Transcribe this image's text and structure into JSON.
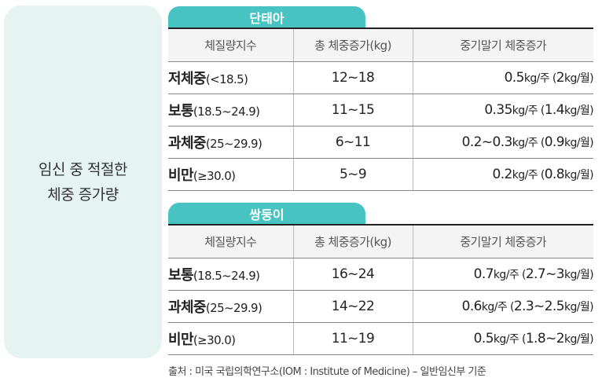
{
  "side_title": "임신 중 적절한\n체중 증가량",
  "tables": [
    {
      "tab_label": "단태아",
      "headers": {
        "bmi": "체질량지수",
        "total": "총 체중증가(kg)",
        "mid": "중기말기 체중증가"
      },
      "rows": [
        {
          "bmi_name": "저체중",
          "bmi_range": "(<18.5)",
          "total": "12~18",
          "mid_a": "0.5",
          "mid_u1": "kg/주 (",
          "mid_b": "2",
          "mid_u2": "kg/월)"
        },
        {
          "bmi_name": "보통",
          "bmi_range": "(18.5~24.9)",
          "total": "11~15",
          "mid_a": "0.35",
          "mid_u1": "kg/주 (",
          "mid_b": "1.4",
          "mid_u2": "kg/월)"
        },
        {
          "bmi_name": "과체중",
          "bmi_range": "(25~29.9)",
          "total": "6~11",
          "mid_a": "0.2~0.3",
          "mid_u1": "kg/주 (",
          "mid_b": "0.9",
          "mid_u2": "kg/월)"
        },
        {
          "bmi_name": "비만",
          "bmi_range": "(≥30.0)",
          "total": "5~9",
          "mid_a": "0.2",
          "mid_u1": "kg/주 (",
          "mid_b": "0.8",
          "mid_u2": "kg/월)"
        }
      ]
    },
    {
      "tab_label": "쌍둥이",
      "headers": {
        "bmi": "체질량지수",
        "total": "총 체중증가(kg)",
        "mid": "중기말기 체중증가"
      },
      "rows": [
        {
          "bmi_name": "보통",
          "bmi_range": "(18.5~24.9)",
          "total": "16~24",
          "mid_a": "0.7",
          "mid_u1": "kg/주 (",
          "mid_b": "2.7~3",
          "mid_u2": "kg/월)"
        },
        {
          "bmi_name": "과체중",
          "bmi_range": "(25~29.9)",
          "total": "14~22",
          "mid_a": "0.6",
          "mid_u1": "kg/주 (",
          "mid_b": "2.3~2.5",
          "mid_u2": "kg/월)"
        },
        {
          "bmi_name": "비만",
          "bmi_range": "(≥30.0)",
          "total": "11~19",
          "mid_a": "0.5",
          "mid_u1": "kg/주 (",
          "mid_b": "1.8~2",
          "mid_u2": "kg/월)"
        }
      ]
    }
  ],
  "footnote": "출처 : 미국 국립의학연구소(IOM : Institute of Medicine) – 일반임신부 기준",
  "colors": {
    "tab": "#47c4c2",
    "side_panel": "#e6f4f1",
    "header_bg": "#f4f4f4"
  }
}
